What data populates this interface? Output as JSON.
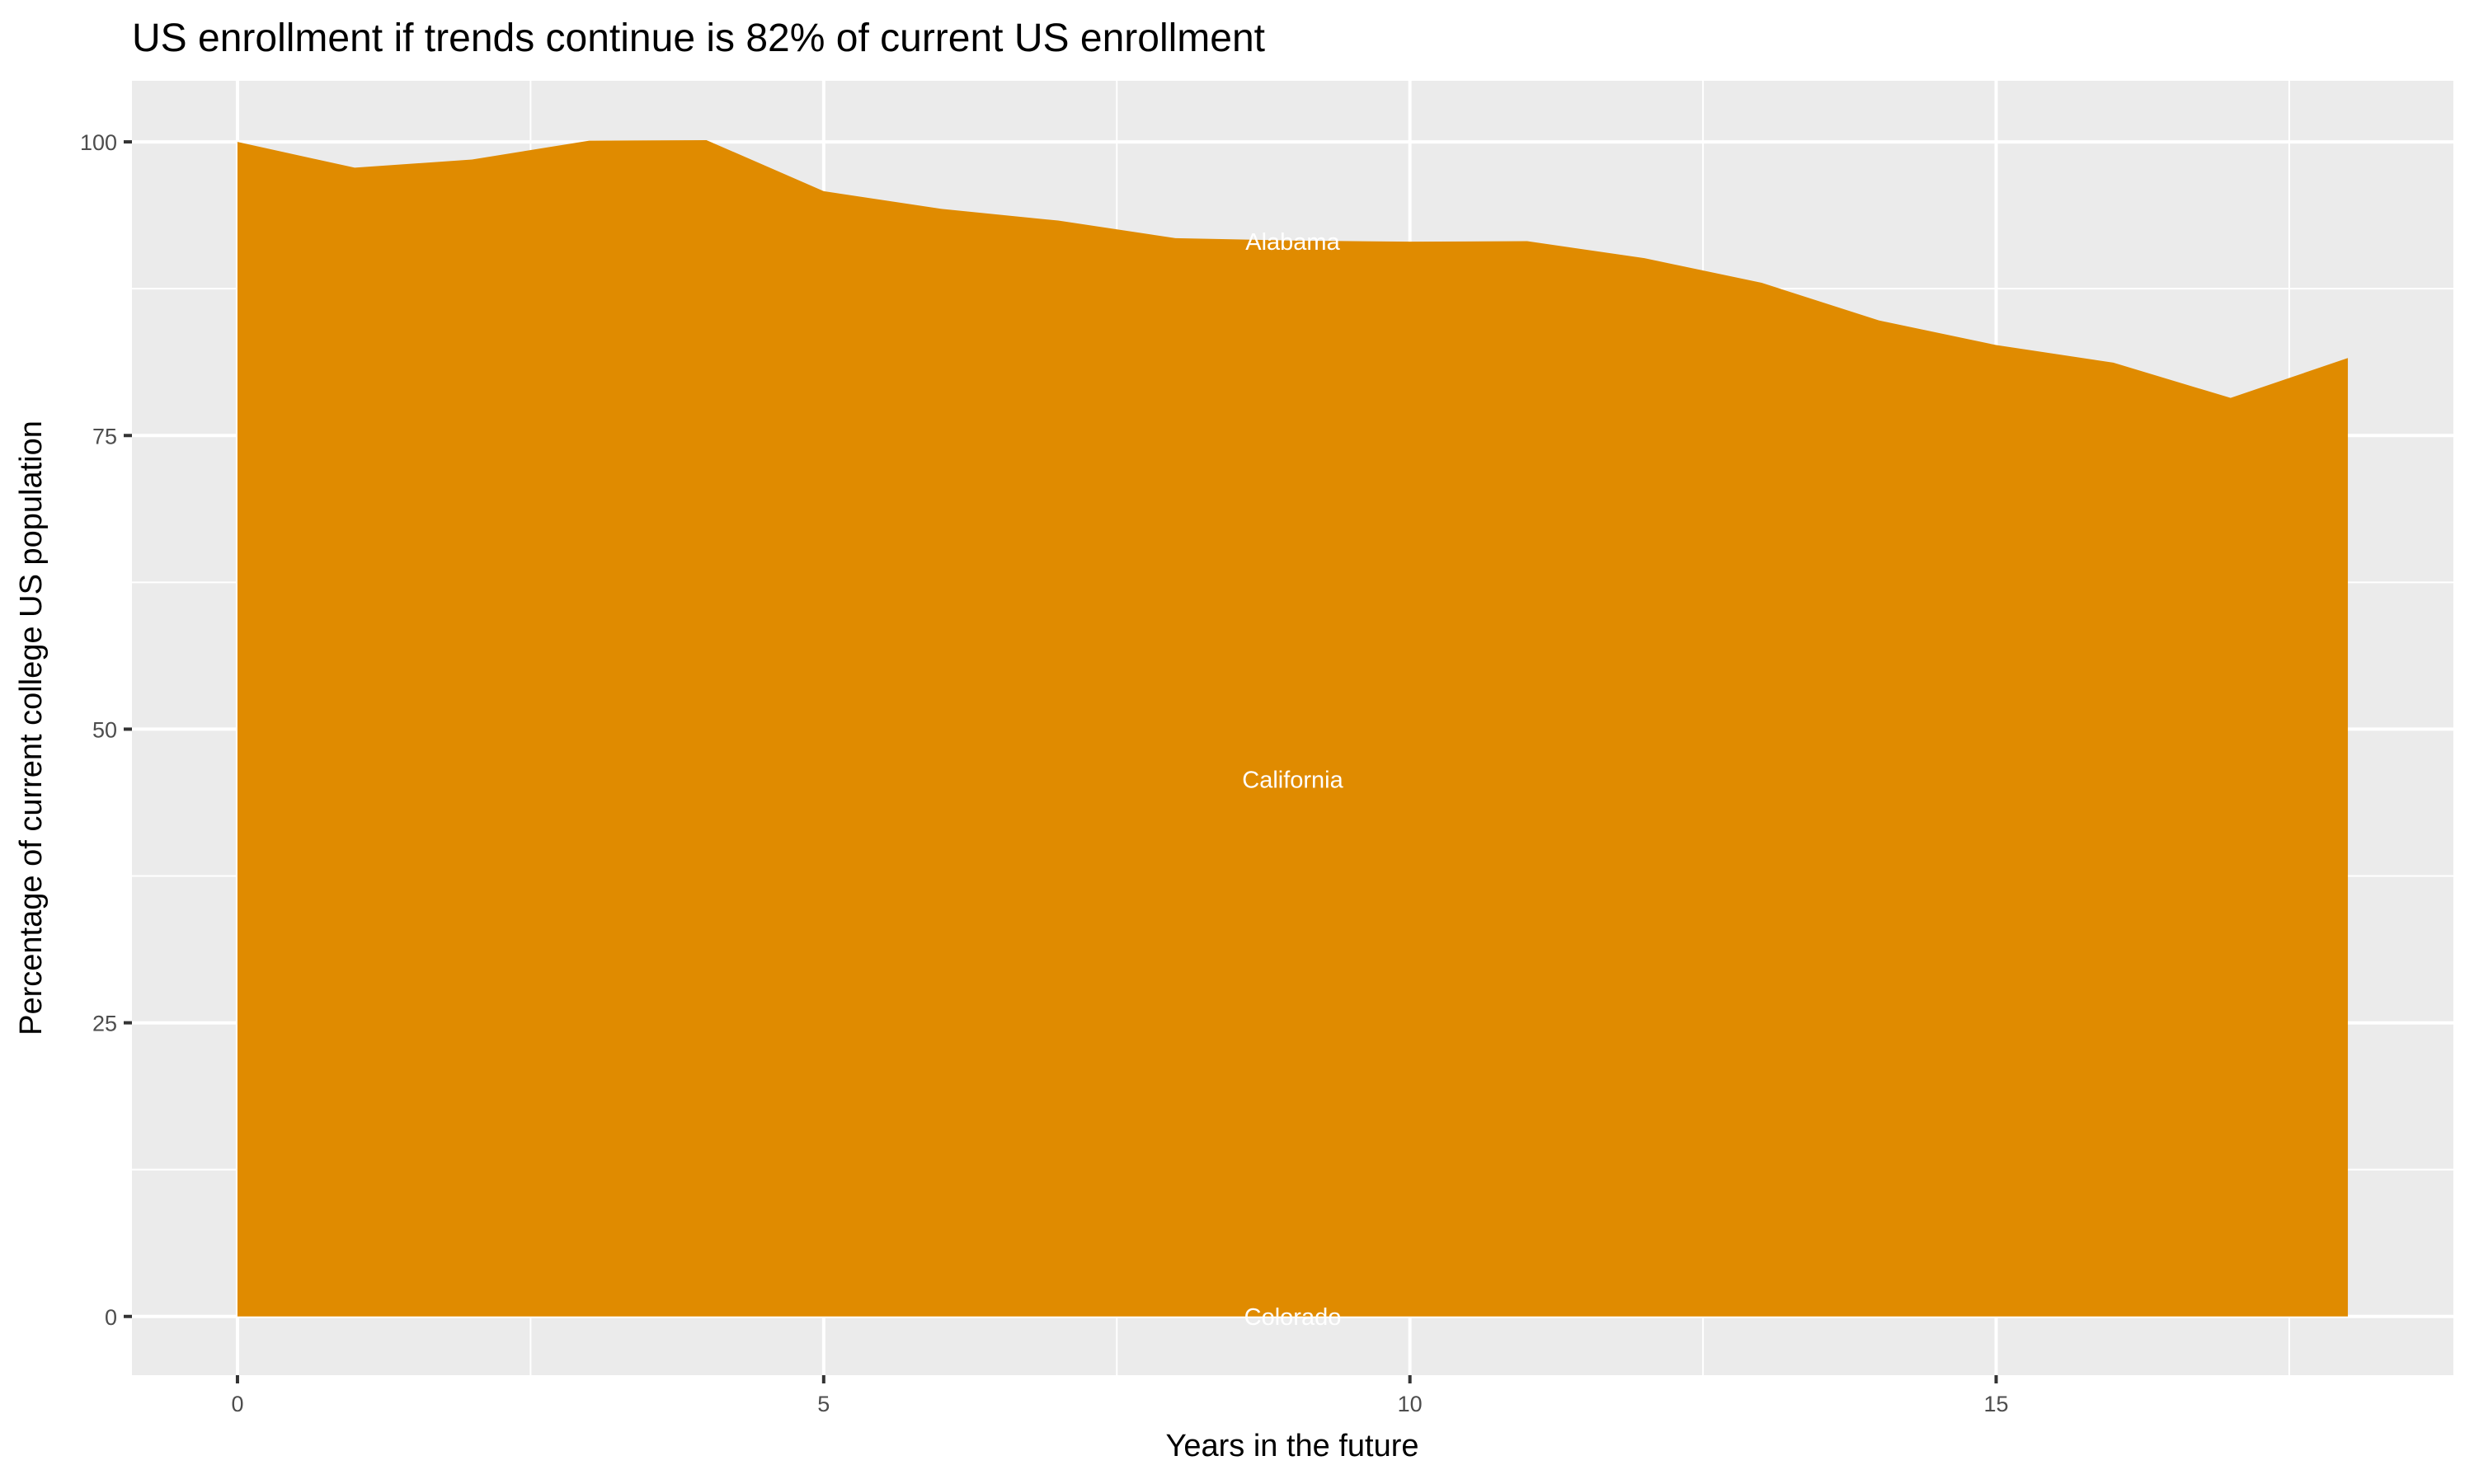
{
  "chart_data": {
    "type": "area",
    "title": "US enrollment if trends continue is 82% of current US enrollment",
    "xlabel": "Years in the future",
    "ylabel": "Percentage of current college US population",
    "xlim": [
      -0.9,
      18.9
    ],
    "ylim": [
      -5,
      105.2
    ],
    "x_ticks": [
      0,
      5,
      10,
      15
    ],
    "y_ticks": [
      0,
      25,
      50,
      75,
      100
    ],
    "grid": true,
    "fill_color": "#E08B00",
    "panel_color": "#EBEBEB",
    "x": [
      0,
      1,
      2,
      3,
      4,
      5,
      6,
      7,
      8,
      9,
      10,
      11,
      12,
      13,
      14,
      15,
      16,
      17,
      18
    ],
    "values": [
      100,
      97.8,
      98.5,
      100.1,
      100.15,
      95.8,
      94.3,
      93.3,
      91.8,
      91.6,
      91.5,
      91.55,
      90.1,
      88.0,
      84.8,
      82.7,
      81.2,
      78.2,
      81.6
    ],
    "annotations": [
      {
        "text": "Alabama",
        "x": 9,
        "y": 91.5
      },
      {
        "text": "California",
        "x": 9,
        "y": 45.7
      },
      {
        "text": "Colorado",
        "x": 9,
        "y": 0
      }
    ]
  }
}
